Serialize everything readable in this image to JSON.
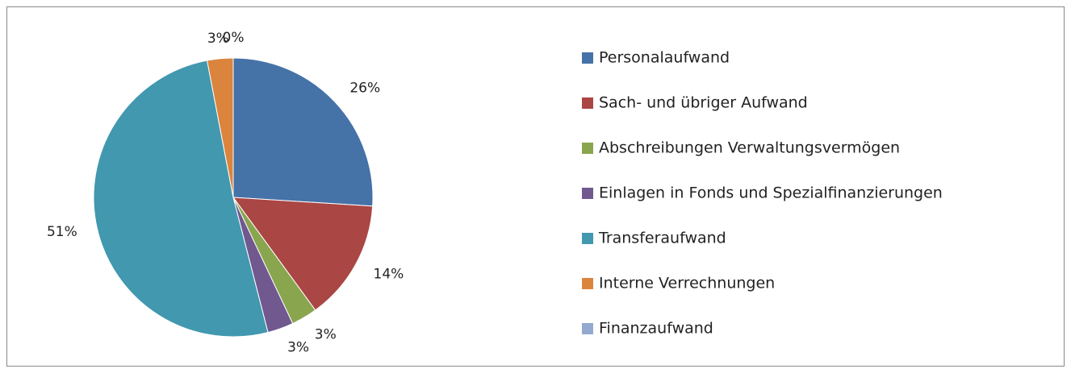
{
  "chart_data": {
    "type": "pie",
    "categories": [
      "Personalaufwand",
      "Sach- und übriger Aufwand",
      "Abschreibungen Verwaltungsvermögen",
      "Einlagen in Fonds und Spezialfinanzierungen",
      "Transferaufwand",
      "Interne Verrechnungen",
      "Finanzaufwand"
    ],
    "values": [
      26,
      14,
      3,
      3,
      51,
      3,
      0
    ],
    "value_labels": [
      "26%",
      "14%",
      "3%",
      "3%",
      "51%",
      "3%",
      "0%"
    ],
    "colors": [
      "#4572a7",
      "#aa4643",
      "#89a54e",
      "#71588f",
      "#4198af",
      "#db843d",
      "#93a9cf"
    ],
    "legend": "right"
  }
}
